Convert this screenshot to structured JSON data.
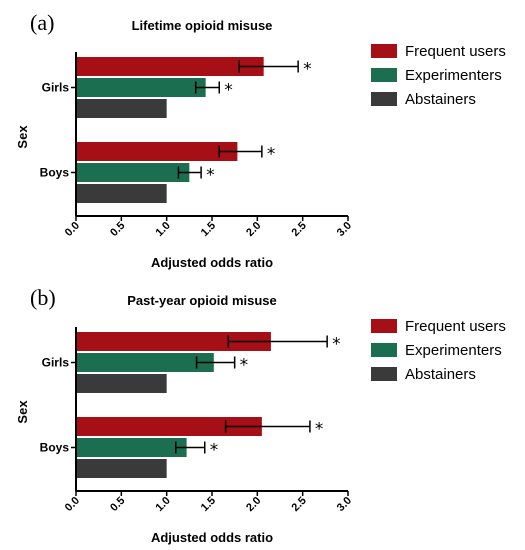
{
  "chart_data": [
    {
      "type": "bar",
      "orientation": "horizontal",
      "panel_letter": "(a)",
      "title": "Lifetime opioid misuse",
      "xlabel": "Adjusted odds ratio",
      "ylabel": "Sex",
      "xlim": [
        0,
        3.0
      ],
      "xticks": [
        "0.0",
        "0.5",
        "1.0",
        "1.5",
        "2.0",
        "2.5",
        "3.0"
      ],
      "categories": [
        "Girls",
        "Boys"
      ],
      "series": [
        {
          "name": "Frequent users",
          "color": "#a50f15",
          "values": [
            2.07,
            1.78
          ],
          "ci_low": [
            1.8,
            1.58
          ],
          "ci_high": [
            2.45,
            2.05
          ],
          "significant": [
            "*",
            "*"
          ]
        },
        {
          "name": "Experimenters",
          "color": "#1b6e4f",
          "values": [
            1.43,
            1.25
          ],
          "ci_low": [
            1.32,
            1.13
          ],
          "ci_high": [
            1.58,
            1.38
          ],
          "significant": [
            "*",
            "*"
          ]
        },
        {
          "name": "Abstainers",
          "color": "#3a3a3a",
          "values": [
            1.0,
            1.0
          ]
        }
      ],
      "legend_position": "top-right"
    },
    {
      "type": "bar",
      "orientation": "horizontal",
      "panel_letter": "(b)",
      "title": "Past-year opioid misuse",
      "xlabel": "Adjusted odds ratio",
      "ylabel": "Sex",
      "xlim": [
        0,
        3.0
      ],
      "xticks": [
        "0.0",
        "0.5",
        "1.0",
        "1.5",
        "2.0",
        "2.5",
        "3.0"
      ],
      "categories": [
        "Girls",
        "Boys"
      ],
      "series": [
        {
          "name": "Frequent users",
          "color": "#a50f15",
          "values": [
            2.15,
            2.05
          ],
          "ci_low": [
            1.68,
            1.65
          ],
          "ci_high": [
            2.77,
            2.58
          ],
          "significant": [
            "*",
            "*"
          ]
        },
        {
          "name": "Experimenters",
          "color": "#1b6e4f",
          "values": [
            1.52,
            1.22
          ],
          "ci_low": [
            1.33,
            1.1
          ],
          "ci_high": [
            1.75,
            1.42
          ],
          "significant": [
            "*",
            "*"
          ]
        },
        {
          "name": "Abstainers",
          "color": "#3a3a3a",
          "values": [
            1.0,
            1.0
          ]
        }
      ],
      "legend_position": "top-right"
    }
  ]
}
